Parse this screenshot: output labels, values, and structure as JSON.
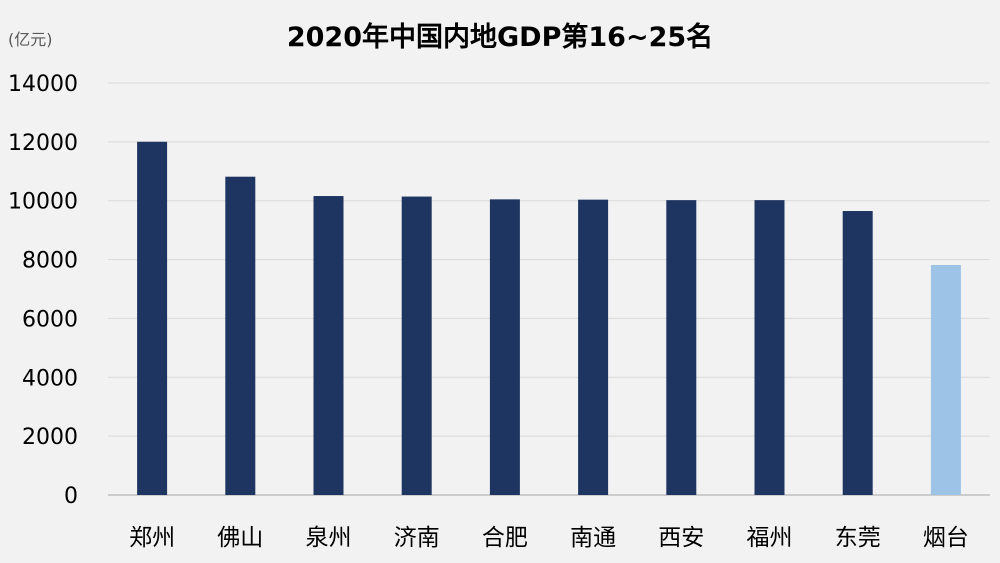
{
  "chart_data": {
    "type": "bar",
    "title": "2020年中国内地GDP第16~25名",
    "unit_label": "(亿元)",
    "xlabel": "",
    "ylabel": "",
    "ylim": [
      0,
      14000
    ],
    "yticks": [
      0,
      2000,
      4000,
      6000,
      8000,
      10000,
      12000,
      14000
    ],
    "grid": true,
    "legend": "none",
    "categories": [
      "郑州",
      "佛山",
      "泉州",
      "济南",
      "合肥",
      "南通",
      "西安",
      "福州",
      "东莞",
      "烟台"
    ],
    "values": [
      12003,
      10816,
      10159,
      10141,
      10046,
      10036,
      10020,
      10020,
      9650,
      7816
    ],
    "colors": {
      "default_bar": "#1f3561",
      "highlight_bar": "#9dc3e6",
      "gridline": "#d9d9d9",
      "axis_line": "#bfbfbf",
      "tick_text": "#000000",
      "unit_text": "#595959",
      "title_text": "#000000"
    },
    "highlight_category": "烟台"
  }
}
